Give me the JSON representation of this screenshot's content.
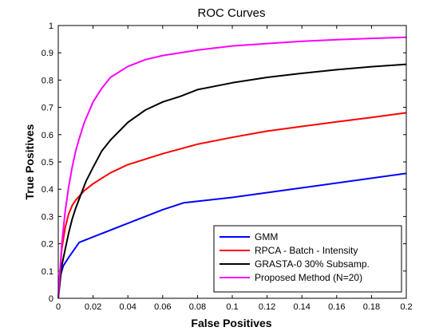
{
  "chart_data": {
    "type": "line",
    "title": "ROC Curves",
    "xlabel": "False Positives",
    "ylabel": "True Positives",
    "xlim": [
      0,
      0.2
    ],
    "ylim": [
      0,
      1
    ],
    "xticks": [
      "0",
      "0.02",
      "0.04",
      "0.06",
      "0.08",
      "0.1",
      "0.12",
      "0.14",
      "0.16",
      "0.18",
      "0.2"
    ],
    "yticks": [
      "0",
      "0.1",
      "0.2",
      "0.3",
      "0.4",
      "0.5",
      "0.6",
      "0.7",
      "0.8",
      "0.9",
      "1"
    ],
    "grid": false,
    "legend_position": "bottom-right",
    "series": [
      {
        "name": "GMM",
        "color": "#0000ff",
        "x": [
          0,
          0.001,
          0.003,
          0.006,
          0.012,
          0.02,
          0.04,
          0.06,
          0.072,
          0.1,
          0.14,
          0.2
        ],
        "y": [
          0,
          0.08,
          0.12,
          0.15,
          0.205,
          0.225,
          0.275,
          0.325,
          0.35,
          0.37,
          0.405,
          0.458
        ]
      },
      {
        "name": "RPCA - Batch - Intensity",
        "color": "#ff0000",
        "x": [
          0,
          0.001,
          0.002,
          0.004,
          0.006,
          0.008,
          0.01,
          0.015,
          0.02,
          0.03,
          0.04,
          0.05,
          0.06,
          0.08,
          0.1,
          0.12,
          0.14,
          0.16,
          0.18,
          0.2
        ],
        "y": [
          0,
          0.1,
          0.18,
          0.26,
          0.31,
          0.34,
          0.36,
          0.395,
          0.42,
          0.46,
          0.49,
          0.51,
          0.53,
          0.565,
          0.59,
          0.613,
          0.63,
          0.647,
          0.663,
          0.68
        ]
      },
      {
        "name": "GRASTA-0 30% Subsamp.",
        "color": "#000000",
        "x": [
          0,
          0.002,
          0.004,
          0.006,
          0.008,
          0.01,
          0.013,
          0.016,
          0.02,
          0.025,
          0.03,
          0.04,
          0.05,
          0.06,
          0.07,
          0.08,
          0.1,
          0.12,
          0.14,
          0.16,
          0.18,
          0.2
        ],
        "y": [
          0,
          0.12,
          0.18,
          0.24,
          0.29,
          0.33,
          0.38,
          0.43,
          0.48,
          0.54,
          0.58,
          0.645,
          0.69,
          0.72,
          0.74,
          0.765,
          0.79,
          0.81,
          0.825,
          0.838,
          0.849,
          0.858
        ]
      },
      {
        "name": "Proposed Method (N=20)",
        "color": "#ff00ff",
        "x": [
          0,
          0.002,
          0.004,
          0.006,
          0.008,
          0.01,
          0.012,
          0.015,
          0.02,
          0.025,
          0.03,
          0.04,
          0.05,
          0.06,
          0.07,
          0.08,
          0.1,
          0.12,
          0.14,
          0.16,
          0.18,
          0.2
        ],
        "y": [
          0,
          0.2,
          0.32,
          0.41,
          0.48,
          0.54,
          0.585,
          0.645,
          0.72,
          0.77,
          0.81,
          0.85,
          0.875,
          0.89,
          0.9,
          0.91,
          0.925,
          0.934,
          0.942,
          0.948,
          0.953,
          0.957
        ]
      }
    ]
  }
}
